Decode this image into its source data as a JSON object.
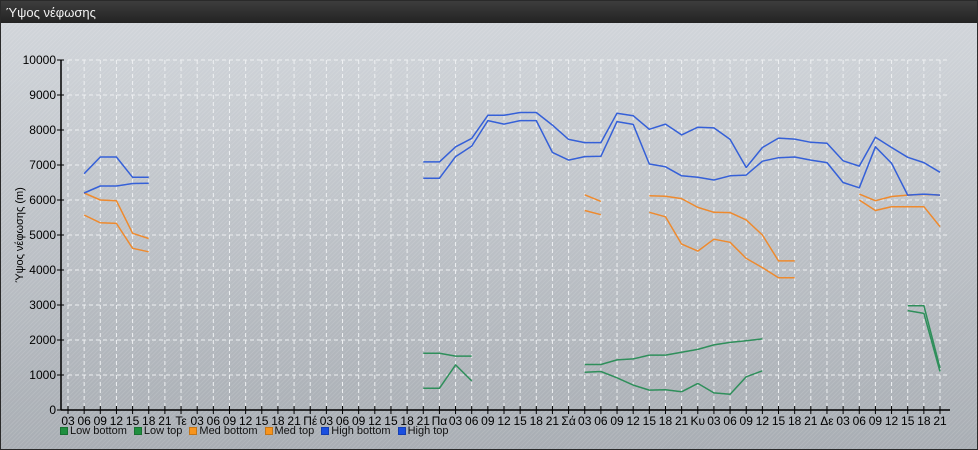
{
  "window": {
    "title": "Ύψος νέφωσης"
  },
  "chart_data": {
    "type": "line",
    "title": "",
    "ylabel": "Ύψος νέφωσης (m)",
    "xlabel": "",
    "ylim": [
      0,
      10000
    ],
    "yticks": [
      "0",
      "1000",
      "2000",
      "3000",
      "4000",
      "5000",
      "6000",
      "7000",
      "8000",
      "9000",
      "10000"
    ],
    "grid": true,
    "legend_position": "bottom-left",
    "x": [
      "03",
      "06",
      "09",
      "12",
      "15",
      "18",
      "21",
      "Τε",
      "03",
      "06",
      "09",
      "12",
      "15",
      "18",
      "21",
      "Πέ",
      "03",
      "06",
      "09",
      "12",
      "15",
      "18",
      "21",
      "Πα",
      "03",
      "06",
      "09",
      "12",
      "15",
      "18",
      "21",
      "Σά",
      "03",
      "06",
      "09",
      "12",
      "15",
      "18",
      "21",
      "Κυ",
      "03",
      "06",
      "09",
      "12",
      "15",
      "18",
      "21",
      "Δε",
      "03",
      "06",
      "09",
      "12",
      "15",
      "18",
      "21"
    ],
    "series": [
      {
        "name": "Low bottom",
        "color": "#2f8f5b",
        "legend_color": "#1f8f3f",
        "values": [
          null,
          null,
          null,
          null,
          null,
          null,
          null,
          null,
          null,
          null,
          null,
          null,
          null,
          null,
          null,
          null,
          null,
          null,
          null,
          null,
          null,
          null,
          620,
          620,
          1290,
          830,
          null,
          null,
          null,
          null,
          null,
          null,
          1080,
          1100,
          920,
          710,
          570,
          580,
          520,
          760,
          490,
          450,
          950,
          1120,
          null,
          null,
          null,
          null,
          null,
          null,
          null,
          null,
          2840,
          2760,
          1100
        ]
      },
      {
        "name": "Low top",
        "color": "#2f8f5b",
        "legend_color": "#1f8f3f",
        "values": [
          null,
          null,
          null,
          null,
          null,
          null,
          null,
          null,
          null,
          null,
          null,
          null,
          null,
          null,
          null,
          null,
          null,
          null,
          null,
          null,
          null,
          null,
          1620,
          1620,
          1540,
          1540,
          null,
          null,
          null,
          null,
          null,
          null,
          1300,
          1300,
          1430,
          1460,
          1570,
          1570,
          1650,
          1730,
          1860,
          1930,
          1980,
          2030,
          null,
          null,
          null,
          null,
          null,
          null,
          null,
          null,
          2980,
          2980,
          1200
        ]
      },
      {
        "name": "Med bottom",
        "color": "#ee8a2e",
        "legend_color": "#f7941d",
        "values": [
          null,
          5570,
          5350,
          5330,
          4620,
          4520,
          null,
          null,
          null,
          null,
          null,
          null,
          null,
          null,
          null,
          null,
          null,
          null,
          null,
          null,
          null,
          null,
          null,
          null,
          null,
          null,
          null,
          null,
          null,
          null,
          null,
          null,
          5700,
          5580,
          null,
          null,
          5650,
          5520,
          4740,
          4540,
          4880,
          4790,
          4330,
          4070,
          3780,
          3780,
          null,
          null,
          null,
          6000,
          5700,
          5810,
          5810,
          5810,
          5240
        ]
      },
      {
        "name": "Med top",
        "color": "#ee8a2e",
        "legend_color": "#f7941d",
        "values": [
          null,
          6200,
          6000,
          5980,
          5050,
          4900,
          null,
          null,
          null,
          null,
          null,
          null,
          null,
          null,
          null,
          null,
          null,
          null,
          null,
          null,
          null,
          null,
          null,
          null,
          null,
          null,
          null,
          null,
          null,
          null,
          null,
          null,
          6150,
          5960,
          null,
          null,
          6120,
          6110,
          6040,
          5790,
          5650,
          5640,
          5430,
          5000,
          4260,
          4260,
          null,
          null,
          null,
          6170,
          5980,
          6100,
          6140,
          6160,
          6140
        ]
      },
      {
        "name": "High bottom",
        "color": "#3560d8",
        "legend_color": "#1a4fe0",
        "values": [
          null,
          6200,
          6400,
          6400,
          6470,
          6480,
          null,
          null,
          null,
          null,
          null,
          null,
          null,
          null,
          null,
          null,
          null,
          null,
          null,
          null,
          null,
          null,
          6620,
          6620,
          7240,
          7540,
          8270,
          8170,
          8270,
          8270,
          7360,
          7140,
          7240,
          7250,
          8240,
          8160,
          7030,
          6950,
          6690,
          6650,
          6570,
          6690,
          6710,
          7110,
          7210,
          7230,
          7140,
          7070,
          6500,
          6350,
          7520,
          7050,
          6140,
          6170,
          6140
        ]
      },
      {
        "name": "High top",
        "color": "#3560d8",
        "legend_color": "#1a4fe0",
        "values": [
          null,
          6750,
          7230,
          7230,
          6650,
          6650,
          null,
          null,
          null,
          null,
          null,
          null,
          null,
          null,
          null,
          null,
          null,
          null,
          null,
          null,
          null,
          null,
          7090,
          7090,
          7520,
          7760,
          8420,
          8420,
          8500,
          8500,
          8140,
          7730,
          7640,
          7640,
          8480,
          8410,
          8020,
          8170,
          7860,
          8080,
          8060,
          7730,
          6930,
          7500,
          7770,
          7740,
          7650,
          7620,
          7120,
          6970,
          7790,
          7500,
          7220,
          7070,
          6790
        ]
      }
    ]
  }
}
